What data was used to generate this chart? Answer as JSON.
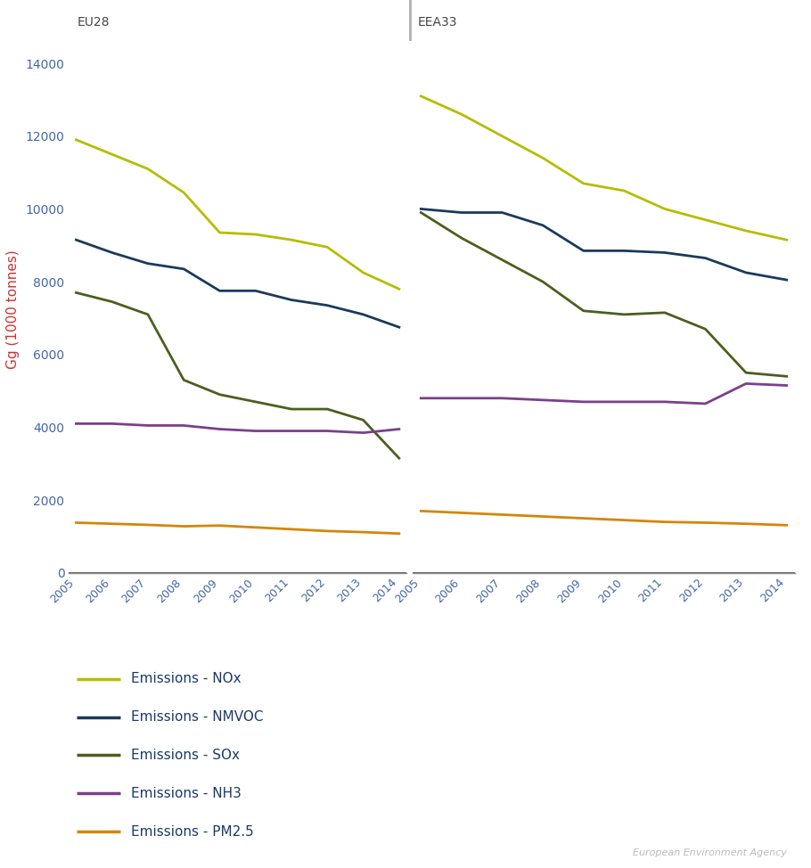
{
  "years": [
    2005,
    2006,
    2007,
    2008,
    2009,
    2010,
    2011,
    2012,
    2013,
    2014
  ],
  "eu28": {
    "NOx": [
      11900,
      11500,
      11100,
      10450,
      9350,
      9300,
      9150,
      8950,
      8250,
      7800
    ],
    "NMVOC": [
      9150,
      8800,
      8500,
      8350,
      7750,
      7750,
      7500,
      7350,
      7100,
      6750
    ],
    "SOx": [
      7700,
      7450,
      7100,
      5300,
      4900,
      4700,
      4500,
      4500,
      4200,
      3150
    ],
    "NH3": [
      4100,
      4100,
      4050,
      4050,
      3950,
      3900,
      3900,
      3900,
      3850,
      3950
    ],
    "PM2.5": [
      1380,
      1350,
      1320,
      1280,
      1300,
      1250,
      1200,
      1150,
      1120,
      1080
    ]
  },
  "eea33": {
    "NOx": [
      13100,
      12600,
      12000,
      11400,
      10700,
      10500,
      10000,
      9700,
      9400,
      9150
    ],
    "NMVOC": [
      10000,
      9900,
      9900,
      9550,
      8850,
      8850,
      8800,
      8650,
      8250,
      8050
    ],
    "SOx": [
      9900,
      9200,
      8600,
      8000,
      7200,
      7100,
      7150,
      6700,
      5500,
      5400
    ],
    "NH3": [
      4800,
      4800,
      4800,
      4750,
      4700,
      4700,
      4700,
      4650,
      5200,
      5150
    ],
    "PM2.5": [
      1700,
      1650,
      1600,
      1550,
      1500,
      1450,
      1400,
      1380,
      1350,
      1310
    ]
  },
  "colors": {
    "NOx": "#b5bd00",
    "NMVOC": "#1a3a5c",
    "SOx": "#4d5e1e",
    "NH3": "#7b3f8c",
    "PM2.5": "#d4860a"
  },
  "legend_labels": {
    "NOx": "Emissions - NOx",
    "NMVOC": "Emissions - NMVOC",
    "SOx": "Emissions - SOx",
    "NH3": "Emissions - NH3",
    "PM2.5": "Emissions - PM2.5"
  },
  "panel_titles": [
    "EU28",
    "EEA33"
  ],
  "ylabel": "Gg (1000 tonnes)",
  "ylim": [
    0,
    14500
  ],
  "yticks": [
    0,
    2000,
    4000,
    6000,
    8000,
    10000,
    12000,
    14000
  ],
  "header_color": "#e8e8e8",
  "header_text_color": "#444444",
  "tick_color": "#4466aa",
  "ylabel_color": "#cc3333",
  "background_color": "#ffffff",
  "line_width": 2.0,
  "legend_label_color": "#1a3a6c",
  "legend_fontsize": 11
}
